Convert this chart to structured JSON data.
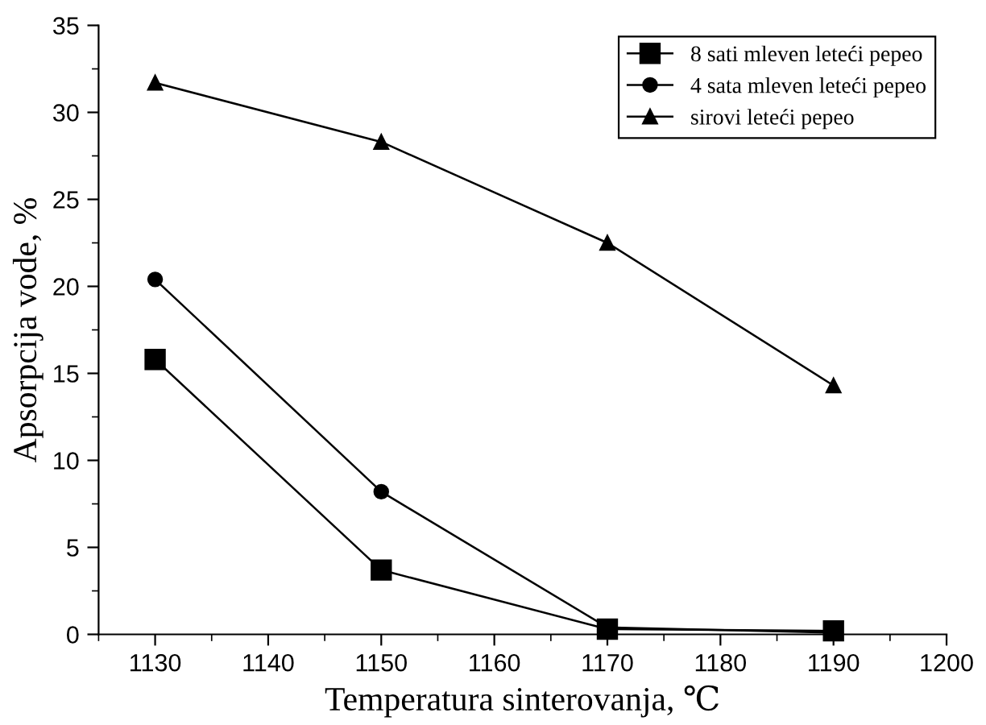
{
  "chart_data": {
    "type": "line",
    "xlabel": "Temperatura sinterovanja, ℃",
    "ylabel": "Apsorpcija vode, %",
    "x": [
      1130,
      1150,
      1170,
      1190
    ],
    "series": [
      {
        "name": "8 sati mleven leteći pepeo",
        "color": "#000000",
        "marker": "square",
        "values": [
          15.8,
          3.7,
          0.3,
          0.2
        ]
      },
      {
        "name": "4 sata mleven leteći pepeo",
        "color": "#000000",
        "marker": "circle",
        "values": [
          20.4,
          8.2,
          0.4,
          0.1
        ]
      },
      {
        "name": "sirovi leteći pepeo",
        "color": "#000000",
        "marker": "triangle",
        "values": [
          31.7,
          28.3,
          22.5,
          14.3
        ]
      }
    ],
    "xlim": [
      1125,
      1200
    ],
    "xticks": [
      1130,
      1140,
      1150,
      1160,
      1170,
      1180,
      1190,
      1200
    ],
    "ylim": [
      0,
      35
    ],
    "yticks": [
      0,
      5,
      10,
      15,
      20,
      25,
      30,
      35
    ],
    "grid": false,
    "legend": "top right",
    "line_style": "solid"
  }
}
